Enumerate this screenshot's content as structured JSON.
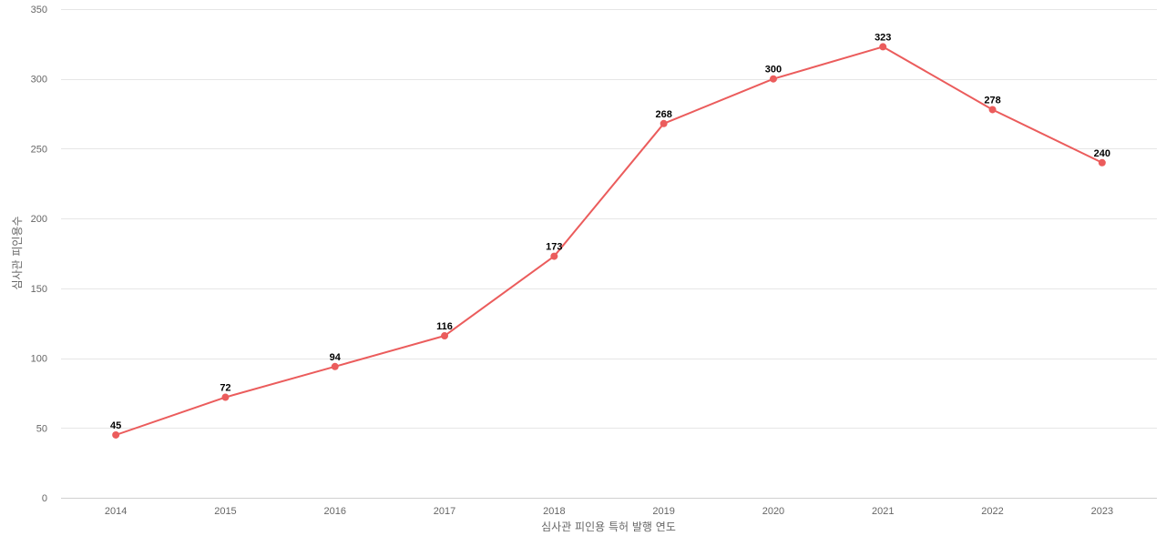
{
  "chart_data": {
    "type": "line",
    "title": "",
    "xlabel": "심사관 피인용 특허 발행 연도",
    "ylabel": "심사관 피인용수",
    "ylim": [
      0,
      350
    ],
    "y_ticks": [
      0,
      50,
      100,
      150,
      200,
      250,
      300,
      350
    ],
    "grid": true,
    "legend": "none",
    "categories": [
      "2014",
      "2015",
      "2016",
      "2017",
      "2018",
      "2019",
      "2020",
      "2021",
      "2022",
      "2023"
    ],
    "series": [
      {
        "values": [
          45,
          72,
          94,
          116,
          173,
          268,
          300,
          323,
          278,
          240
        ],
        "color": "#eb5c5c"
      }
    ]
  }
}
